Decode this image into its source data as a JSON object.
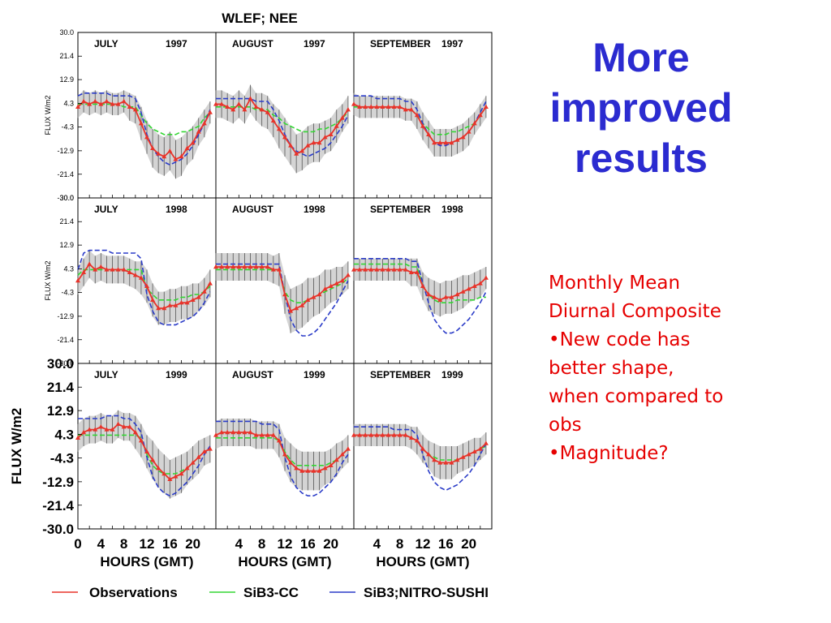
{
  "slide": {
    "title_lines": [
      "More",
      "improved",
      "results"
    ],
    "notes": {
      "heading_lines": [
        "Monthly Mean",
        "Diurnal Composite"
      ],
      "bullets": [
        [
          "•New code has",
          "better shape,",
          "when compared to",
          "obs"
        ],
        [
          "•Magnitude?"
        ]
      ]
    }
  },
  "colors": {
    "observations": "#e8332a",
    "sib3_cc": "#33d633",
    "sib3_nitro": "#2b3cc8",
    "band": "#cccccc",
    "title": "#2b2bd0",
    "notes": "#e60000"
  },
  "chart_data": {
    "type": "line",
    "title": "WLEF; NEE",
    "ylabel": "FLUX  W/m2",
    "xlabel": "HOURS (GMT)",
    "ylim": [
      -30.0,
      30.0
    ],
    "yticks": [
      "30.0",
      "21.4",
      "12.9",
      "4.3",
      "-4.3",
      "-12.9",
      "-21.4",
      "-30.0"
    ],
    "xticks_first_column": [
      "0",
      "4",
      "8",
      "12",
      "16",
      "20"
    ],
    "xticks_other_columns": [
      "4",
      "8",
      "12",
      "16",
      "20"
    ],
    "x": [
      0,
      1,
      2,
      3,
      4,
      5,
      6,
      7,
      8,
      9,
      10,
      11,
      12,
      13,
      14,
      15,
      16,
      17,
      18,
      19,
      20,
      21,
      22,
      23
    ],
    "legend": [
      {
        "name": "Observations",
        "color": "#e8332a"
      },
      {
        "name": "SiB3-CC",
        "color": "#33d633"
      },
      {
        "name": "SiB3;NITRO-SUSHI",
        "color": "#2b3cc8"
      }
    ],
    "panels": [
      {
        "month": "JULY",
        "year": "1997",
        "obs": [
          3,
          5,
          4,
          5,
          4,
          5,
          4,
          4,
          5,
          3,
          2,
          -3,
          -8,
          -12,
          -14,
          -15,
          -13,
          -16,
          -15,
          -12,
          -10,
          -6,
          -3,
          1
        ],
        "cc": [
          4,
          4,
          4,
          4,
          4,
          4,
          4,
          4,
          3,
          3,
          3,
          0,
          -3,
          -5,
          -6,
          -7,
          -7,
          -7,
          -6,
          -6,
          -5,
          -4,
          -1,
          1
        ],
        "nitro": [
          7,
          8,
          8,
          8,
          8,
          8,
          7,
          7,
          7,
          7,
          6,
          1,
          -7,
          -12,
          -15,
          -17,
          -18,
          -17,
          -16,
          -14,
          -11,
          -7,
          -3,
          2
        ],
        "spread": [
          4,
          4,
          4,
          4,
          4,
          4,
          4,
          4,
          4,
          5,
          5,
          6,
          6,
          7,
          7,
          7,
          7,
          7,
          7,
          6,
          6,
          5,
          5,
          4
        ]
      },
      {
        "month": "AUGUST",
        "year": "1997",
        "obs": [
          4,
          4,
          3,
          2,
          4,
          2,
          6,
          3,
          2,
          1,
          -2,
          -5,
          -8,
          -11,
          -14,
          -13,
          -11,
          -10,
          -10,
          -8,
          -7,
          -4,
          -1,
          2
        ],
        "cc": [
          3,
          3,
          3,
          3,
          3,
          3,
          3,
          2,
          2,
          2,
          0,
          -1,
          -3,
          -4,
          -5,
          -6,
          -6,
          -6,
          -5,
          -5,
          -4,
          -3,
          -1,
          1
        ],
        "nitro": [
          6,
          6,
          6,
          6,
          6,
          6,
          6,
          5,
          5,
          5,
          2,
          -2,
          -7,
          -11,
          -13,
          -14,
          -15,
          -14,
          -13,
          -12,
          -10,
          -7,
          -4,
          0
        ],
        "spread": [
          5,
          5,
          5,
          5,
          5,
          5,
          5,
          5,
          6,
          6,
          6,
          7,
          7,
          7,
          7,
          7,
          7,
          7,
          7,
          6,
          6,
          6,
          5,
          5
        ]
      },
      {
        "month": "SEPTEMBER",
        "year": "1997",
        "obs": [
          4,
          3,
          3,
          3,
          3,
          3,
          3,
          3,
          3,
          2,
          2,
          0,
          -4,
          -7,
          -10,
          -10,
          -10,
          -10,
          -9,
          -8,
          -6,
          -3,
          0,
          3
        ],
        "cc": [
          3,
          3,
          3,
          3,
          3,
          3,
          3,
          3,
          3,
          2,
          2,
          0,
          -3,
          -5,
          -7,
          -7,
          -7,
          -6,
          -6,
          -5,
          -4,
          -3,
          0,
          3
        ],
        "nitro": [
          7,
          7,
          7,
          7,
          6,
          6,
          6,
          6,
          6,
          5,
          5,
          2,
          -3,
          -7,
          -10,
          -11,
          -11,
          -10,
          -9,
          -8,
          -6,
          -3,
          1,
          5
        ],
        "spread": [
          4,
          4,
          4,
          4,
          4,
          4,
          4,
          4,
          4,
          4,
          4,
          5,
          5,
          5,
          5,
          5,
          5,
          5,
          5,
          5,
          5,
          4,
          4,
          4
        ]
      },
      {
        "month": "JULY",
        "year": "1998",
        "obs": [
          0,
          3,
          6,
          4,
          5,
          4,
          4,
          4,
          4,
          3,
          2,
          1,
          -2,
          -7,
          -10,
          -10,
          -9,
          -9,
          -8,
          -8,
          -7,
          -6,
          -4,
          -1
        ],
        "cc": [
          2,
          4,
          4,
          4,
          4,
          4,
          4,
          4,
          4,
          4,
          4,
          4,
          -3,
          -5,
          -7,
          -7,
          -7,
          -7,
          -6,
          -6,
          -5,
          -5,
          -4,
          -2
        ],
        "nitro": [
          4,
          10,
          11,
          11,
          11,
          11,
          10,
          10,
          10,
          10,
          10,
          8,
          -5,
          -11,
          -15,
          -16,
          -16,
          -16,
          -15,
          -14,
          -13,
          -11,
          -8,
          -4
        ],
        "spread": [
          5,
          5,
          5,
          5,
          5,
          5,
          5,
          5,
          5,
          5,
          5,
          6,
          6,
          6,
          6,
          6,
          6,
          6,
          6,
          6,
          6,
          5,
          5,
          5
        ]
      },
      {
        "month": "AUGUST",
        "year": "1998",
        "obs": [
          5,
          5,
          5,
          5,
          5,
          5,
          5,
          5,
          5,
          5,
          4,
          4,
          -5,
          -11,
          -10,
          -9,
          -7,
          -6,
          -5,
          -3,
          -2,
          -1,
          0,
          2
        ],
        "cc": [
          4,
          4,
          4,
          4,
          4,
          4,
          4,
          4,
          4,
          4,
          4,
          4,
          -4,
          -7,
          -8,
          -8,
          -7,
          -6,
          -5,
          -4,
          -3,
          -2,
          -1,
          1
        ],
        "nitro": [
          6,
          6,
          6,
          6,
          6,
          6,
          6,
          6,
          6,
          6,
          6,
          6,
          -5,
          -14,
          -18,
          -20,
          -20,
          -19,
          -17,
          -14,
          -11,
          -8,
          -4,
          0
        ],
        "spread": [
          5,
          5,
          5,
          5,
          5,
          5,
          5,
          5,
          5,
          5,
          5,
          6,
          7,
          8,
          8,
          8,
          8,
          7,
          7,
          7,
          6,
          6,
          5,
          5
        ]
      },
      {
        "month": "SEPTEMBER",
        "year": "1998",
        "obs": [
          4,
          4,
          4,
          4,
          4,
          4,
          4,
          4,
          4,
          4,
          3,
          3,
          -2,
          -5,
          -6,
          -7,
          -6,
          -6,
          -5,
          -4,
          -3,
          -2,
          -1,
          1
        ],
        "cc": [
          6,
          6,
          6,
          6,
          6,
          6,
          6,
          6,
          6,
          6,
          5,
          5,
          -2,
          -5,
          -7,
          -8,
          -8,
          -8,
          -7,
          -7,
          -7,
          -7,
          -6,
          -6
        ],
        "nitro": [
          8,
          8,
          8,
          8,
          8,
          8,
          8,
          8,
          8,
          8,
          7,
          7,
          -1,
          -8,
          -14,
          -17,
          -19,
          -19,
          -18,
          -16,
          -14,
          -11,
          -8,
          -4
        ],
        "spread": [
          4,
          4,
          4,
          4,
          4,
          4,
          4,
          4,
          4,
          4,
          5,
          5,
          5,
          6,
          6,
          6,
          6,
          6,
          6,
          6,
          5,
          5,
          5,
          4
        ]
      },
      {
        "month": "JULY",
        "year": "1999",
        "obs": [
          3,
          5,
          6,
          6,
          7,
          6,
          6,
          8,
          7,
          7,
          5,
          2,
          -2,
          -5,
          -8,
          -10,
          -12,
          -11,
          -10,
          -8,
          -6,
          -4,
          -2,
          -1
        ],
        "cc": [
          4,
          4,
          4,
          4,
          4,
          4,
          4,
          4,
          4,
          4,
          4,
          3,
          -3,
          -7,
          -9,
          -10,
          -10,
          -10,
          -9,
          -8,
          -6,
          -4,
          -2,
          -1
        ],
        "nitro": [
          10,
          10,
          10,
          10,
          10,
          11,
          11,
          11,
          10,
          10,
          8,
          5,
          -4,
          -11,
          -15,
          -17,
          -18,
          -17,
          -15,
          -13,
          -10,
          -7,
          -3,
          0
        ],
        "spread": [
          5,
          5,
          5,
          5,
          5,
          5,
          5,
          5,
          5,
          5,
          6,
          6,
          6,
          7,
          7,
          7,
          7,
          7,
          7,
          6,
          6,
          6,
          5,
          5
        ]
      },
      {
        "month": "AUGUST",
        "year": "1999",
        "obs": [
          4,
          5,
          5,
          5,
          5,
          5,
          5,
          4,
          4,
          4,
          4,
          2,
          -3,
          -6,
          -8,
          -9,
          -9,
          -9,
          -9,
          -8,
          -7,
          -5,
          -3,
          -1
        ],
        "cc": [
          3,
          3,
          3,
          3,
          3,
          3,
          3,
          3,
          3,
          3,
          3,
          2,
          -2,
          -5,
          -7,
          -7,
          -7,
          -7,
          -7,
          -7,
          -6,
          -5,
          -3,
          -1
        ],
        "nitro": [
          9,
          9,
          9,
          9,
          9,
          9,
          9,
          9,
          8,
          8,
          8,
          6,
          -4,
          -11,
          -15,
          -17,
          -18,
          -18,
          -17,
          -15,
          -13,
          -10,
          -6,
          -3
        ],
        "spread": [
          5,
          5,
          5,
          5,
          5,
          5,
          5,
          5,
          5,
          5,
          5,
          6,
          6,
          7,
          7,
          7,
          7,
          7,
          7,
          6,
          6,
          6,
          5,
          5
        ]
      },
      {
        "month": "SEPTEMBER",
        "year": "1999",
        "obs": [
          4,
          4,
          4,
          4,
          4,
          4,
          4,
          4,
          4,
          4,
          3,
          2,
          -1,
          -3,
          -5,
          -6,
          -6,
          -6,
          -5,
          -4,
          -3,
          -2,
          -1,
          1
        ],
        "cc": [
          4,
          4,
          4,
          4,
          4,
          4,
          4,
          4,
          4,
          4,
          3,
          2,
          -1,
          -3,
          -4,
          -5,
          -5,
          -5,
          -5,
          -4,
          -3,
          -2,
          -1,
          0
        ],
        "nitro": [
          7,
          7,
          7,
          7,
          7,
          7,
          7,
          6,
          6,
          6,
          6,
          4,
          -3,
          -9,
          -13,
          -15,
          -16,
          -15,
          -14,
          -12,
          -10,
          -7,
          -3,
          1
        ],
        "spread": [
          4,
          4,
          4,
          4,
          4,
          4,
          4,
          4,
          4,
          4,
          4,
          5,
          5,
          5,
          6,
          6,
          6,
          6,
          5,
          5,
          5,
          5,
          4,
          4
        ]
      }
    ]
  }
}
